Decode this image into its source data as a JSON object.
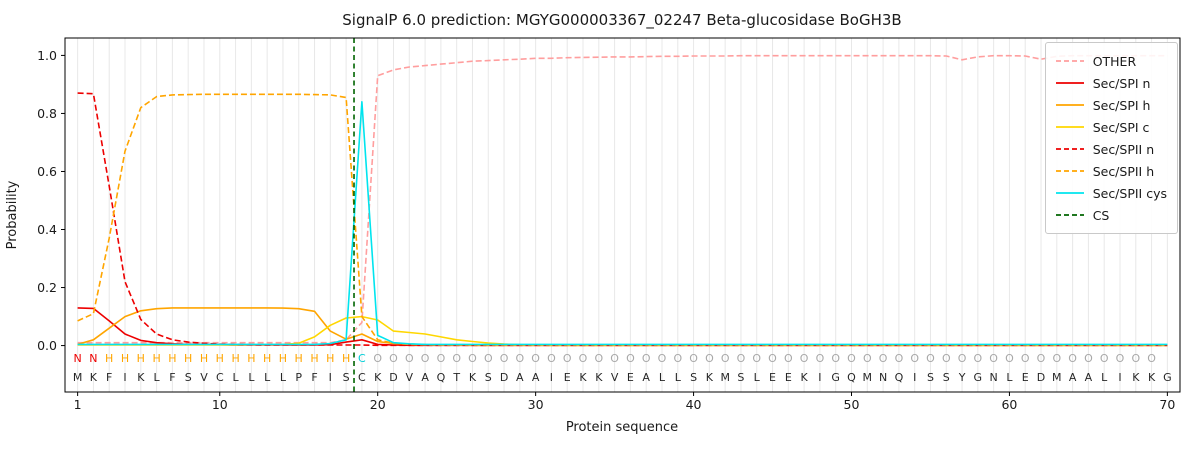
{
  "chart_data": {
    "type": "line",
    "title": "SignalP 6.0 prediction: MGYG000003367_02247 Beta-glucosidase BoGH3B",
    "xlabel": "Protein sequence",
    "ylabel": "Probability",
    "xlim": [
      0.2,
      70.8
    ],
    "ylim": [
      -0.16,
      1.06
    ],
    "xticks": [
      1,
      10,
      20,
      30,
      40,
      50,
      60,
      70
    ],
    "yticks": [
      0,
      0.2,
      0.4,
      0.6,
      0.8,
      1.0
    ],
    "x_start": 1,
    "grid": "light vertical gridline at every residue position",
    "legend_position": "upper right",
    "sequence": "MKFIKLFSVCLLLLPFISCKDVAQTKSDAAIEKKVEALLSKMSLEEKIGQMNQISSYGNLEDMAALIKKG",
    "annotation": "NNHHHHHHHHHHHHHHHHCOOOOOOOOOOOOOOOOOOOOOOOOOOOOOOOOOOOOOOOOOOOOOOOOOO",
    "cs_position": 18.5,
    "series": [
      {
        "name": "OTHER",
        "color": "#ff9e9e",
        "dash": "dashed",
        "values": [
          0.01,
          0.01,
          0.01,
          0.01,
          0.01,
          0.01,
          0.01,
          0.01,
          0.01,
          0.01,
          0.01,
          0.01,
          0.01,
          0.01,
          0.01,
          0.01,
          0.01,
          0.02,
          0.08,
          0.93,
          0.95,
          0.96,
          0.965,
          0.97,
          0.975,
          0.98,
          0.982,
          0.985,
          0.987,
          0.99,
          0.99,
          0.992,
          0.993,
          0.994,
          0.995,
          0.995,
          0.996,
          0.997,
          0.997,
          0.998,
          0.998,
          0.998,
          0.999,
          0.999,
          0.999,
          0.999,
          0.999,
          0.999,
          0.999,
          0.999,
          0.999,
          0.999,
          0.999,
          0.999,
          0.999,
          0.998,
          0.985,
          0.995,
          0.999,
          0.999,
          0.998,
          0.987,
          0.997,
          0.999,
          0.999,
          0.999,
          0.999,
          0.999,
          0.999,
          0.999
        ]
      },
      {
        "name": "Sec/SPI n",
        "color": "#ed0000",
        "dash": "solid",
        "values": [
          0.13,
          0.128,
          0.085,
          0.04,
          0.018,
          0.01,
          0.006,
          0.004,
          0.003,
          0.003,
          0.002,
          0.002,
          0.002,
          0.002,
          0.002,
          0.002,
          0.003,
          0.012,
          0.02,
          0.004,
          0.002,
          0.001,
          0.001,
          0.001,
          0.001,
          0.001,
          0.001,
          0.001,
          0.001,
          0.001,
          0.001,
          0.001,
          0.001,
          0.001,
          0.001,
          0.001,
          0.001,
          0.001,
          0.001,
          0.001,
          0.001,
          0.001,
          0.001,
          0.001,
          0.001,
          0.001,
          0.001,
          0.001,
          0.001,
          0.001,
          0.001,
          0.001,
          0.001,
          0.001,
          0.001,
          0.001,
          0.001,
          0.001,
          0.001,
          0.001,
          0.001,
          0.001,
          0.001,
          0.001,
          0.001,
          0.001,
          0.001,
          0.001,
          0.001,
          0.001
        ]
      },
      {
        "name": "Sec/SPI h",
        "color": "#ffa500",
        "dash": "solid",
        "values": [
          0.004,
          0.02,
          0.06,
          0.1,
          0.12,
          0.127,
          0.13,
          0.13,
          0.13,
          0.13,
          0.13,
          0.13,
          0.13,
          0.129,
          0.127,
          0.118,
          0.05,
          0.022,
          0.04,
          0.014,
          0.007,
          0.005,
          0.003,
          0.002,
          0.002,
          0.001,
          0.001,
          0.001,
          0.001,
          0.001,
          0.001,
          0.001,
          0.001,
          0.001,
          0.001,
          0.001,
          0.001,
          0.001,
          0.001,
          0.001,
          0.001,
          0.001,
          0.001,
          0.001,
          0.001,
          0.001,
          0.001,
          0.001,
          0.001,
          0.001,
          0.001,
          0.001,
          0.001,
          0.001,
          0.001,
          0.001,
          0.001,
          0.001,
          0.001,
          0.001,
          0.001,
          0.001,
          0.001,
          0.001,
          0.001,
          0.001,
          0.001,
          0.001,
          0.001,
          0.001
        ]
      },
      {
        "name": "Sec/SPI c",
        "color": "#ffd700",
        "dash": "solid",
        "values": [
          0.002,
          0.002,
          0.002,
          0.002,
          0.002,
          0.002,
          0.002,
          0.002,
          0.002,
          0.002,
          0.002,
          0.003,
          0.003,
          0.004,
          0.008,
          0.03,
          0.07,
          0.095,
          0.1,
          0.088,
          0.05,
          0.045,
          0.04,
          0.03,
          0.02,
          0.014,
          0.009,
          0.005,
          0.003,
          0.002,
          0.001,
          0.001,
          0.001,
          0.001,
          0.001,
          0.001,
          0.001,
          0.001,
          0.001,
          0.001,
          0.001,
          0.001,
          0.001,
          0.001,
          0.001,
          0.001,
          0.001,
          0.001,
          0.001,
          0.001,
          0.001,
          0.001,
          0.001,
          0.001,
          0.001,
          0.001,
          0.001,
          0.001,
          0.001,
          0.001,
          0.001,
          0.001,
          0.001,
          0.001,
          0.001,
          0.001,
          0.001,
          0.001,
          0.001,
          0.001
        ]
      },
      {
        "name": "Sec/SPII n",
        "color": "#ed0000",
        "dash": "dashed",
        "values": [
          0.87,
          0.868,
          0.55,
          0.22,
          0.09,
          0.04,
          0.02,
          0.012,
          0.008,
          0.005,
          0.004,
          0.003,
          0.002,
          0.002,
          0.002,
          0.002,
          0.002,
          0.002,
          0.002,
          0.001,
          0.001,
          0.001,
          0.001,
          0.001,
          0.001,
          0.001,
          0.001,
          0.001,
          0.001,
          0.001,
          0.001,
          0.001,
          0.001,
          0.001,
          0.001,
          0.001,
          0.001,
          0.001,
          0.001,
          0.001,
          0.001,
          0.001,
          0.001,
          0.001,
          0.001,
          0.001,
          0.001,
          0.001,
          0.001,
          0.001,
          0.001,
          0.001,
          0.001,
          0.001,
          0.001,
          0.001,
          0.001,
          0.001,
          0.001,
          0.001,
          0.001,
          0.001,
          0.001,
          0.001,
          0.001,
          0.001,
          0.001,
          0.001,
          0.001,
          0.001
        ]
      },
      {
        "name": "Sec/SPII h",
        "color": "#ffa500",
        "dash": "dashed",
        "values": [
          0.085,
          0.11,
          0.37,
          0.67,
          0.82,
          0.858,
          0.864,
          0.865,
          0.866,
          0.866,
          0.866,
          0.866,
          0.866,
          0.866,
          0.866,
          0.865,
          0.864,
          0.855,
          0.1,
          0.02,
          0.008,
          0.004,
          0.003,
          0.002,
          0.002,
          0.002,
          0.002,
          0.002,
          0.002,
          0.002,
          0.002,
          0.002,
          0.002,
          0.002,
          0.002,
          0.002,
          0.002,
          0.002,
          0.002,
          0.002,
          0.002,
          0.002,
          0.002,
          0.002,
          0.002,
          0.002,
          0.002,
          0.002,
          0.002,
          0.002,
          0.002,
          0.002,
          0.002,
          0.002,
          0.002,
          0.002,
          0.002,
          0.002,
          0.002,
          0.002,
          0.002,
          0.002,
          0.002,
          0.002,
          0.002,
          0.002,
          0.002,
          0.002,
          0.002,
          0.002
        ]
      },
      {
        "name": "Sec/SPII cys",
        "color": "#00e4ee",
        "dash": "solid",
        "values": [
          0.004,
          0.004,
          0.004,
          0.004,
          0.004,
          0.004,
          0.004,
          0.004,
          0.004,
          0.004,
          0.004,
          0.004,
          0.004,
          0.004,
          0.004,
          0.004,
          0.007,
          0.02,
          0.84,
          0.035,
          0.01,
          0.006,
          0.004,
          0.004,
          0.004,
          0.004,
          0.004,
          0.004,
          0.004,
          0.004,
          0.004,
          0.004,
          0.004,
          0.004,
          0.004,
          0.004,
          0.004,
          0.004,
          0.004,
          0.004,
          0.004,
          0.004,
          0.004,
          0.004,
          0.004,
          0.004,
          0.004,
          0.004,
          0.004,
          0.004,
          0.004,
          0.004,
          0.004,
          0.004,
          0.004,
          0.004,
          0.004,
          0.004,
          0.004,
          0.004,
          0.004,
          0.004,
          0.004,
          0.004,
          0.004,
          0.004,
          0.004,
          0.004,
          0.004,
          0.004
        ]
      }
    ],
    "cs": {
      "label": "CS",
      "color": "#006400",
      "dash": "dashed"
    },
    "annotation_colors": {
      "N": "#ed0000",
      "H": "#ffa500",
      "C": "#00cfd8",
      "O": "#a8a8a8"
    },
    "colors": {
      "grid": "#e8e8e8",
      "spine": "#000000",
      "text": "#1a1a1a",
      "sequence_letters": "#262626",
      "background": "#ffffff"
    }
  }
}
